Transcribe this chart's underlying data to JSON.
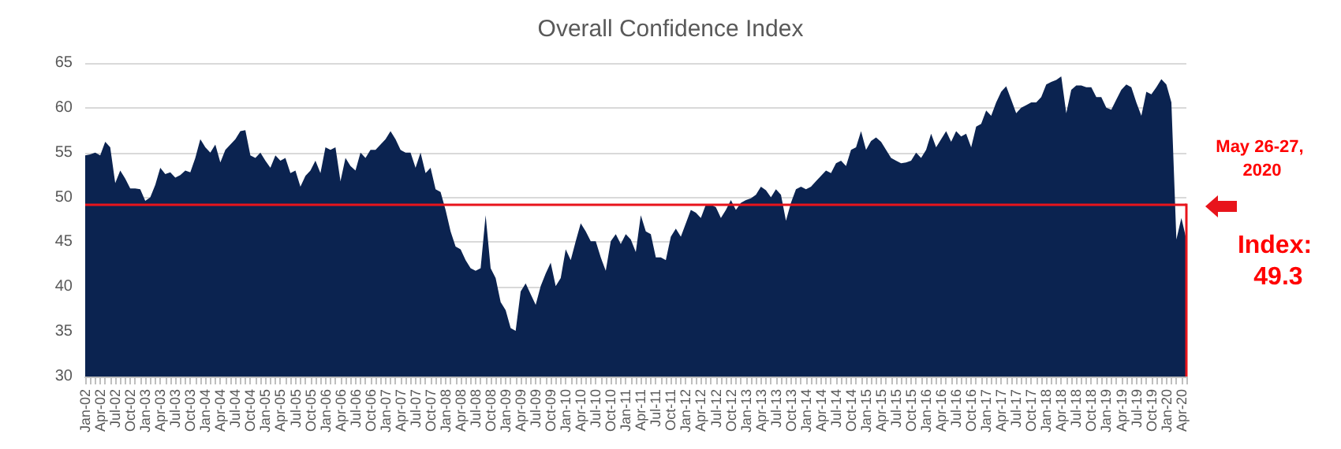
{
  "chart_data": {
    "type": "area",
    "title": "Overall Confidence Index",
    "categories": [
      "Jan-02",
      null,
      null,
      "Apr-02",
      null,
      null,
      "Jul-02",
      null,
      null,
      "Oct-02",
      null,
      null,
      "Jan-03",
      null,
      null,
      "Apr-03",
      null,
      null,
      "Jul-03",
      null,
      null,
      "Oct-03",
      null,
      null,
      "Jan-04",
      null,
      null,
      "Apr-04",
      null,
      null,
      "Jul-04",
      null,
      null,
      "Oct-04",
      null,
      null,
      "Jan-05",
      null,
      null,
      "Apr-05",
      null,
      null,
      "Jul-05",
      null,
      null,
      "Oct-05",
      null,
      null,
      "Jan-06",
      null,
      null,
      "Apr-06",
      null,
      null,
      "Jul-06",
      null,
      null,
      "Oct-06",
      null,
      null,
      "Jan-07",
      null,
      null,
      "Apr-07",
      null,
      null,
      "Jul-07",
      null,
      null,
      "Oct-07",
      null,
      null,
      "Jan-08",
      null,
      null,
      "Apr-08",
      null,
      null,
      "Jul-08",
      null,
      null,
      "Oct-08",
      null,
      null,
      "Jan-09",
      null,
      null,
      "Apr-09",
      null,
      null,
      "Jul-09",
      null,
      null,
      "Oct-09",
      null,
      null,
      "Jan-10",
      null,
      null,
      "Apr-10",
      null,
      null,
      "Jul-10",
      null,
      null,
      "Oct-10",
      null,
      null,
      "Jan-11",
      null,
      null,
      "Apr-11",
      null,
      null,
      "Jul-11",
      null,
      null,
      "Oct-11",
      null,
      null,
      "Jan-12",
      null,
      null,
      "Apr-12",
      null,
      null,
      "Jul-12",
      null,
      null,
      "Oct-12",
      null,
      null,
      "Jan-13",
      null,
      null,
      "Apr-13",
      null,
      null,
      "Jul-13",
      null,
      null,
      "Oct-13",
      null,
      null,
      "Jan-14",
      null,
      null,
      "Apr-14",
      null,
      null,
      "Jul-14",
      null,
      null,
      "Oct-14",
      null,
      null,
      "Jan-15",
      null,
      null,
      "Apr-15",
      null,
      null,
      "Jul-15",
      null,
      null,
      "Oct-15",
      null,
      null,
      "Jan-16",
      null,
      null,
      "Apr-16",
      null,
      null,
      "Jul-16",
      null,
      null,
      "Oct-16",
      null,
      null,
      "Jan-17",
      null,
      null,
      "Apr-17",
      null,
      null,
      "Jul-17",
      null,
      null,
      "Oct-17",
      null,
      null,
      "Jan-18",
      null,
      null,
      "Apr-18",
      null,
      null,
      "Jul-18",
      null,
      null,
      "Oct-18",
      null,
      null,
      "Jan-19",
      null,
      null,
      "Apr-19",
      null,
      null,
      "Jul-19",
      null,
      null,
      "Oct-19",
      null,
      null,
      "Jan-20",
      null,
      null,
      "Apr-20",
      null
    ],
    "series": [
      {
        "color": "#0b2350",
        "values": [
          54.7,
          54.8,
          55.0,
          54.7,
          56.2,
          55.6,
          51.6,
          53.0,
          52.1,
          51.0,
          51.0,
          50.9,
          49.6,
          50.0,
          51.4,
          53.3,
          52.6,
          52.8,
          52.2,
          52.5,
          53.0,
          52.8,
          54.4,
          56.5,
          55.6,
          55.0,
          55.9,
          53.9,
          55.3,
          55.9,
          56.5,
          57.4,
          57.5,
          54.7,
          54.4,
          55.0,
          54.1,
          53.3,
          54.7,
          54.1,
          54.4,
          52.7,
          53.0,
          51.2,
          52.4,
          53.0,
          54.1,
          52.7,
          55.6,
          55.3,
          55.6,
          51.8,
          54.4,
          53.5,
          53.0,
          55.0,
          54.4,
          55.3,
          55.3,
          55.9,
          56.5,
          57.4,
          56.5,
          55.3,
          55.0,
          55.0,
          53.3,
          55.0,
          52.7,
          53.3,
          50.9,
          50.6,
          48.6,
          46.2,
          44.5,
          44.2,
          43.0,
          42.1,
          41.8,
          42.1,
          48.0,
          42.1,
          41.0,
          38.3,
          37.4,
          35.4,
          35.1,
          39.5,
          40.4,
          39.2,
          38.0,
          40.1,
          41.5,
          42.7,
          40.1,
          41.0,
          44.2,
          43.0,
          45.1,
          47.1,
          46.2,
          45.1,
          45.1,
          43.3,
          41.8,
          45.1,
          45.9,
          44.8,
          45.9,
          45.3,
          43.9,
          48.0,
          46.2,
          45.9,
          43.3,
          43.3,
          43.0,
          45.6,
          46.5,
          45.6,
          47.1,
          48.6,
          48.3,
          47.7,
          49.2,
          49.2,
          48.9,
          47.7,
          48.6,
          49.7,
          48.6,
          49.4,
          49.7,
          49.9,
          50.3,
          51.2,
          50.8,
          50.0,
          50.9,
          50.3,
          47.4,
          49.4,
          50.9,
          51.2,
          50.9,
          51.2,
          51.8,
          52.4,
          53.0,
          52.7,
          53.8,
          54.1,
          53.5,
          55.3,
          55.6,
          57.4,
          55.3,
          56.3,
          56.7,
          56.2,
          55.3,
          54.4,
          54.1,
          53.8,
          53.9,
          54.1,
          55.0,
          54.4,
          55.3,
          57.1,
          55.6,
          56.5,
          57.4,
          56.2,
          57.4,
          56.8,
          57.1,
          55.6,
          57.9,
          58.2,
          59.7,
          59.1,
          60.6,
          61.8,
          62.4,
          60.9,
          59.4,
          60.0,
          60.3,
          60.6,
          60.6,
          61.2,
          62.6,
          62.9,
          63.1,
          63.5,
          59.4,
          62.0,
          62.5,
          62.5,
          62.3,
          62.3,
          61.2,
          61.2,
          60.0,
          59.8,
          60.9,
          62.0,
          62.6,
          62.3,
          60.6,
          59.1,
          61.8,
          61.5,
          62.3,
          63.2,
          62.6,
          60.6,
          45.3,
          47.7,
          45.3
        ]
      }
    ],
    "ylim": [
      30,
      65
    ],
    "yticks": [
      30,
      35,
      40,
      45,
      50,
      55,
      60,
      65
    ],
    "grid": "y",
    "ref_lines": [
      {
        "axis": "y",
        "value": 49.3,
        "color": "#e8141b"
      }
    ],
    "annotations": [
      "May 26-27, 2020",
      "Index: 49.3"
    ]
  }
}
